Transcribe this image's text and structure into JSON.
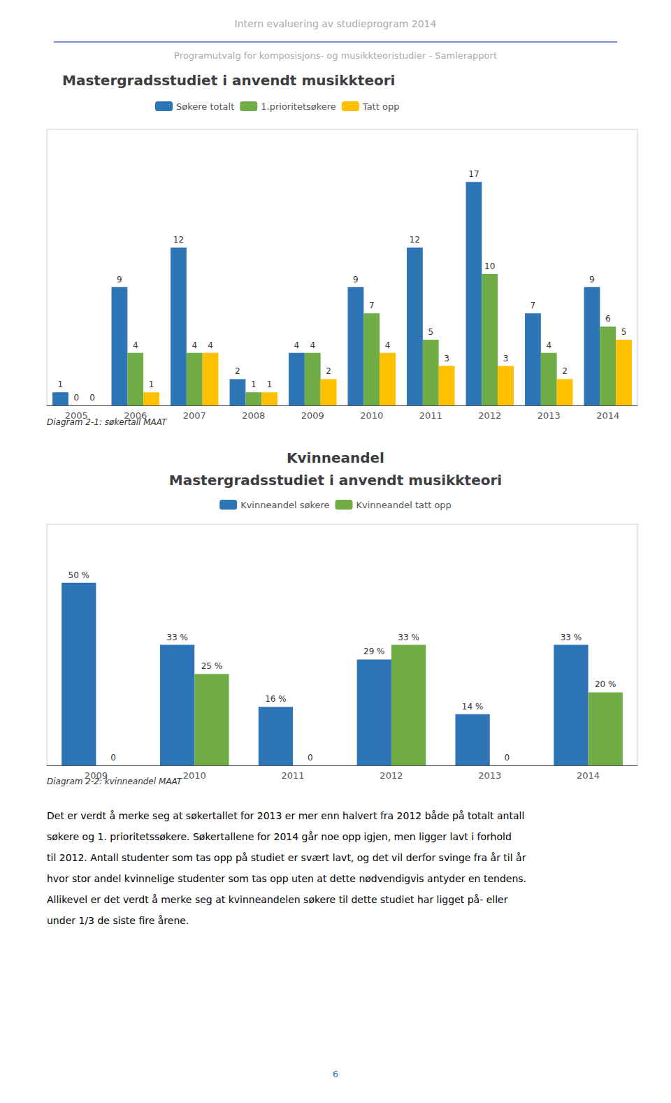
{
  "title": "Intern evaluering av studieprogram 2014",
  "subtitle": "Programutvalg for komposisjons- og musikkteoristudier - Samlerapport",
  "chart_data": [
    {
      "type": "bar",
      "title": "Mastergradsstudiet i anvendt musikkteori",
      "categories": [
        "2005",
        "2006",
        "2007",
        "2008",
        "2009",
        "2010",
        "2011",
        "2012",
        "2013",
        "2014"
      ],
      "series": [
        {
          "name": "Søkere totalt",
          "color": "#2E75B6",
          "values": [
            1,
            9,
            12,
            2,
            4,
            9,
            12,
            17,
            7,
            9
          ]
        },
        {
          "name": "1.prioritetsøkere",
          "color": "#70AD47",
          "values": [
            0,
            4,
            4,
            1,
            4,
            7,
            5,
            10,
            4,
            6
          ]
        },
        {
          "name": "Tatt opp",
          "color": "#FFC000",
          "values": [
            0,
            1,
            4,
            1,
            2,
            4,
            3,
            3,
            2,
            5
          ]
        }
      ],
      "ylim": [
        0,
        21
      ],
      "tick_labels": "x",
      "data_labels": true,
      "legend": "top-left",
      "annotations": [
        "Diagram 2-1: søkertall MAAT"
      ]
    },
    {
      "type": "bar",
      "title": "Kvinneandel",
      "subtitle": "Mastergradsstudiet i anvendt musikkteori",
      "categories": [
        "2009",
        "2010",
        "2011",
        "2012",
        "2013",
        "2014"
      ],
      "series": [
        {
          "name": "Kvinneandel søkere",
          "color": "#2E75B6",
          "values": [
            0.5,
            0.33,
            0.16,
            0.29,
            0.14,
            0.33
          ],
          "value_labels": [
            "50 %",
            "33 %",
            "16 %",
            "29 %",
            "14 %",
            "33 %"
          ]
        },
        {
          "name": "Kvinneandel tatt opp",
          "color": "#70AD47",
          "values": [
            0.0,
            0.25,
            0.0,
            0.33,
            0.0,
            0.2
          ],
          "value_labels": [
            "0",
            "25 %",
            "0",
            "33 %",
            "0",
            "20 %"
          ]
        }
      ],
      "ylim": [
        0,
        0.66
      ],
      "tick_labels": "x",
      "data_labels": true,
      "legend": "top",
      "annotations": [
        "Diagram 2-2: kvinneandel MAAT"
      ]
    }
  ],
  "body_text": [
    "Det er verdt å merke seg at søkertallet for 2013 er mer enn halvert fra 2012 både på totalt antall",
    "søkere og 1. prioritetssøkere. Søkertallene for 2014 går noe opp igjen, men ligger lavt i forhold",
    "til 2012. Antall studenter som tas opp på studiet er svært lavt, og det vil derfor svinge fra år til år",
    "hvor stor andel kvinnelige studenter som tas opp uten at dette nødvendigvis antyder en tendens.",
    "Allikevel er det verdt å merke seg at kvinneandelen søkere til dette studiet har ligget på- eller",
    "under 1/3 de siste fire årene."
  ],
  "page_number": "6"
}
